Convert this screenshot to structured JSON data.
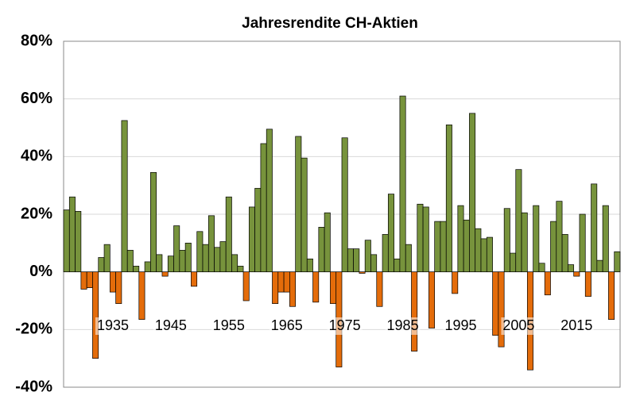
{
  "chart_data": {
    "type": "bar",
    "title": "Jahresrendite CH-Aktien",
    "categories": [
      null,
      null,
      null,
      null,
      null,
      null,
      null,
      null,
      "1935",
      null,
      null,
      null,
      null,
      null,
      null,
      null,
      null,
      null,
      "1945",
      null,
      null,
      null,
      null,
      null,
      null,
      null,
      null,
      null,
      "1955",
      null,
      null,
      null,
      null,
      null,
      null,
      null,
      null,
      null,
      "1965",
      null,
      null,
      null,
      null,
      null,
      null,
      null,
      null,
      null,
      "1975",
      null,
      null,
      null,
      null,
      null,
      null,
      null,
      null,
      null,
      "1985",
      null,
      null,
      null,
      null,
      null,
      null,
      null,
      null,
      null,
      "1995",
      null,
      null,
      null,
      null,
      null,
      null,
      null,
      null,
      null,
      "2005",
      null,
      null,
      null,
      null,
      null,
      null,
      null,
      null,
      null,
      "2015",
      null,
      null,
      null,
      null,
      null,
      null,
      null
    ],
    "values": [
      21.5,
      26,
      21,
      -6,
      -5.5,
      -30,
      5,
      9.5,
      -7,
      -11,
      52.5,
      7.5,
      2,
      -16.5,
      3.5,
      34.5,
      6,
      -1.5,
      5.5,
      16,
      7.5,
      10,
      -5,
      14,
      9.5,
      19.5,
      8.5,
      10.5,
      26,
      6,
      2,
      -10,
      22.5,
      29,
      44.5,
      49.5,
      -11,
      -7,
      -7,
      -12,
      47,
      39.5,
      4.5,
      -10.5,
      15.5,
      20.5,
      -11,
      -33,
      46.5,
      8,
      8,
      -0.5,
      11,
      6,
      -12,
      13,
      27,
      4.5,
      61,
      9.5,
      -27.5,
      23.5,
      22.5,
      -19.5,
      17.5,
      17.5,
      51,
      -7.5,
      23,
      18,
      55,
      15,
      11.5,
      12,
      -22,
      -26,
      22,
      6.5,
      35.5,
      20.5,
      -34,
      23,
      3,
      -8,
      17.5,
      24.5,
      13,
      2.5,
      -1.5,
      20,
      -8.5,
      30.5,
      4,
      23,
      -16.5,
      7
    ],
    "positive_color": "#77933c",
    "negative_color": "#e46c0a",
    "ylim": [
      -40,
      80
    ],
    "yticks": [
      {
        "value": -40,
        "label": "-40%"
      },
      {
        "value": -20,
        "label": "-20%"
      },
      {
        "value": 0,
        "label": "0%"
      },
      {
        "value": 20,
        "label": "20%"
      },
      {
        "value": 40,
        "label": "40%"
      },
      {
        "value": 60,
        "label": "60%"
      },
      {
        "value": 80,
        "label": "80%"
      }
    ],
    "grid": true
  }
}
